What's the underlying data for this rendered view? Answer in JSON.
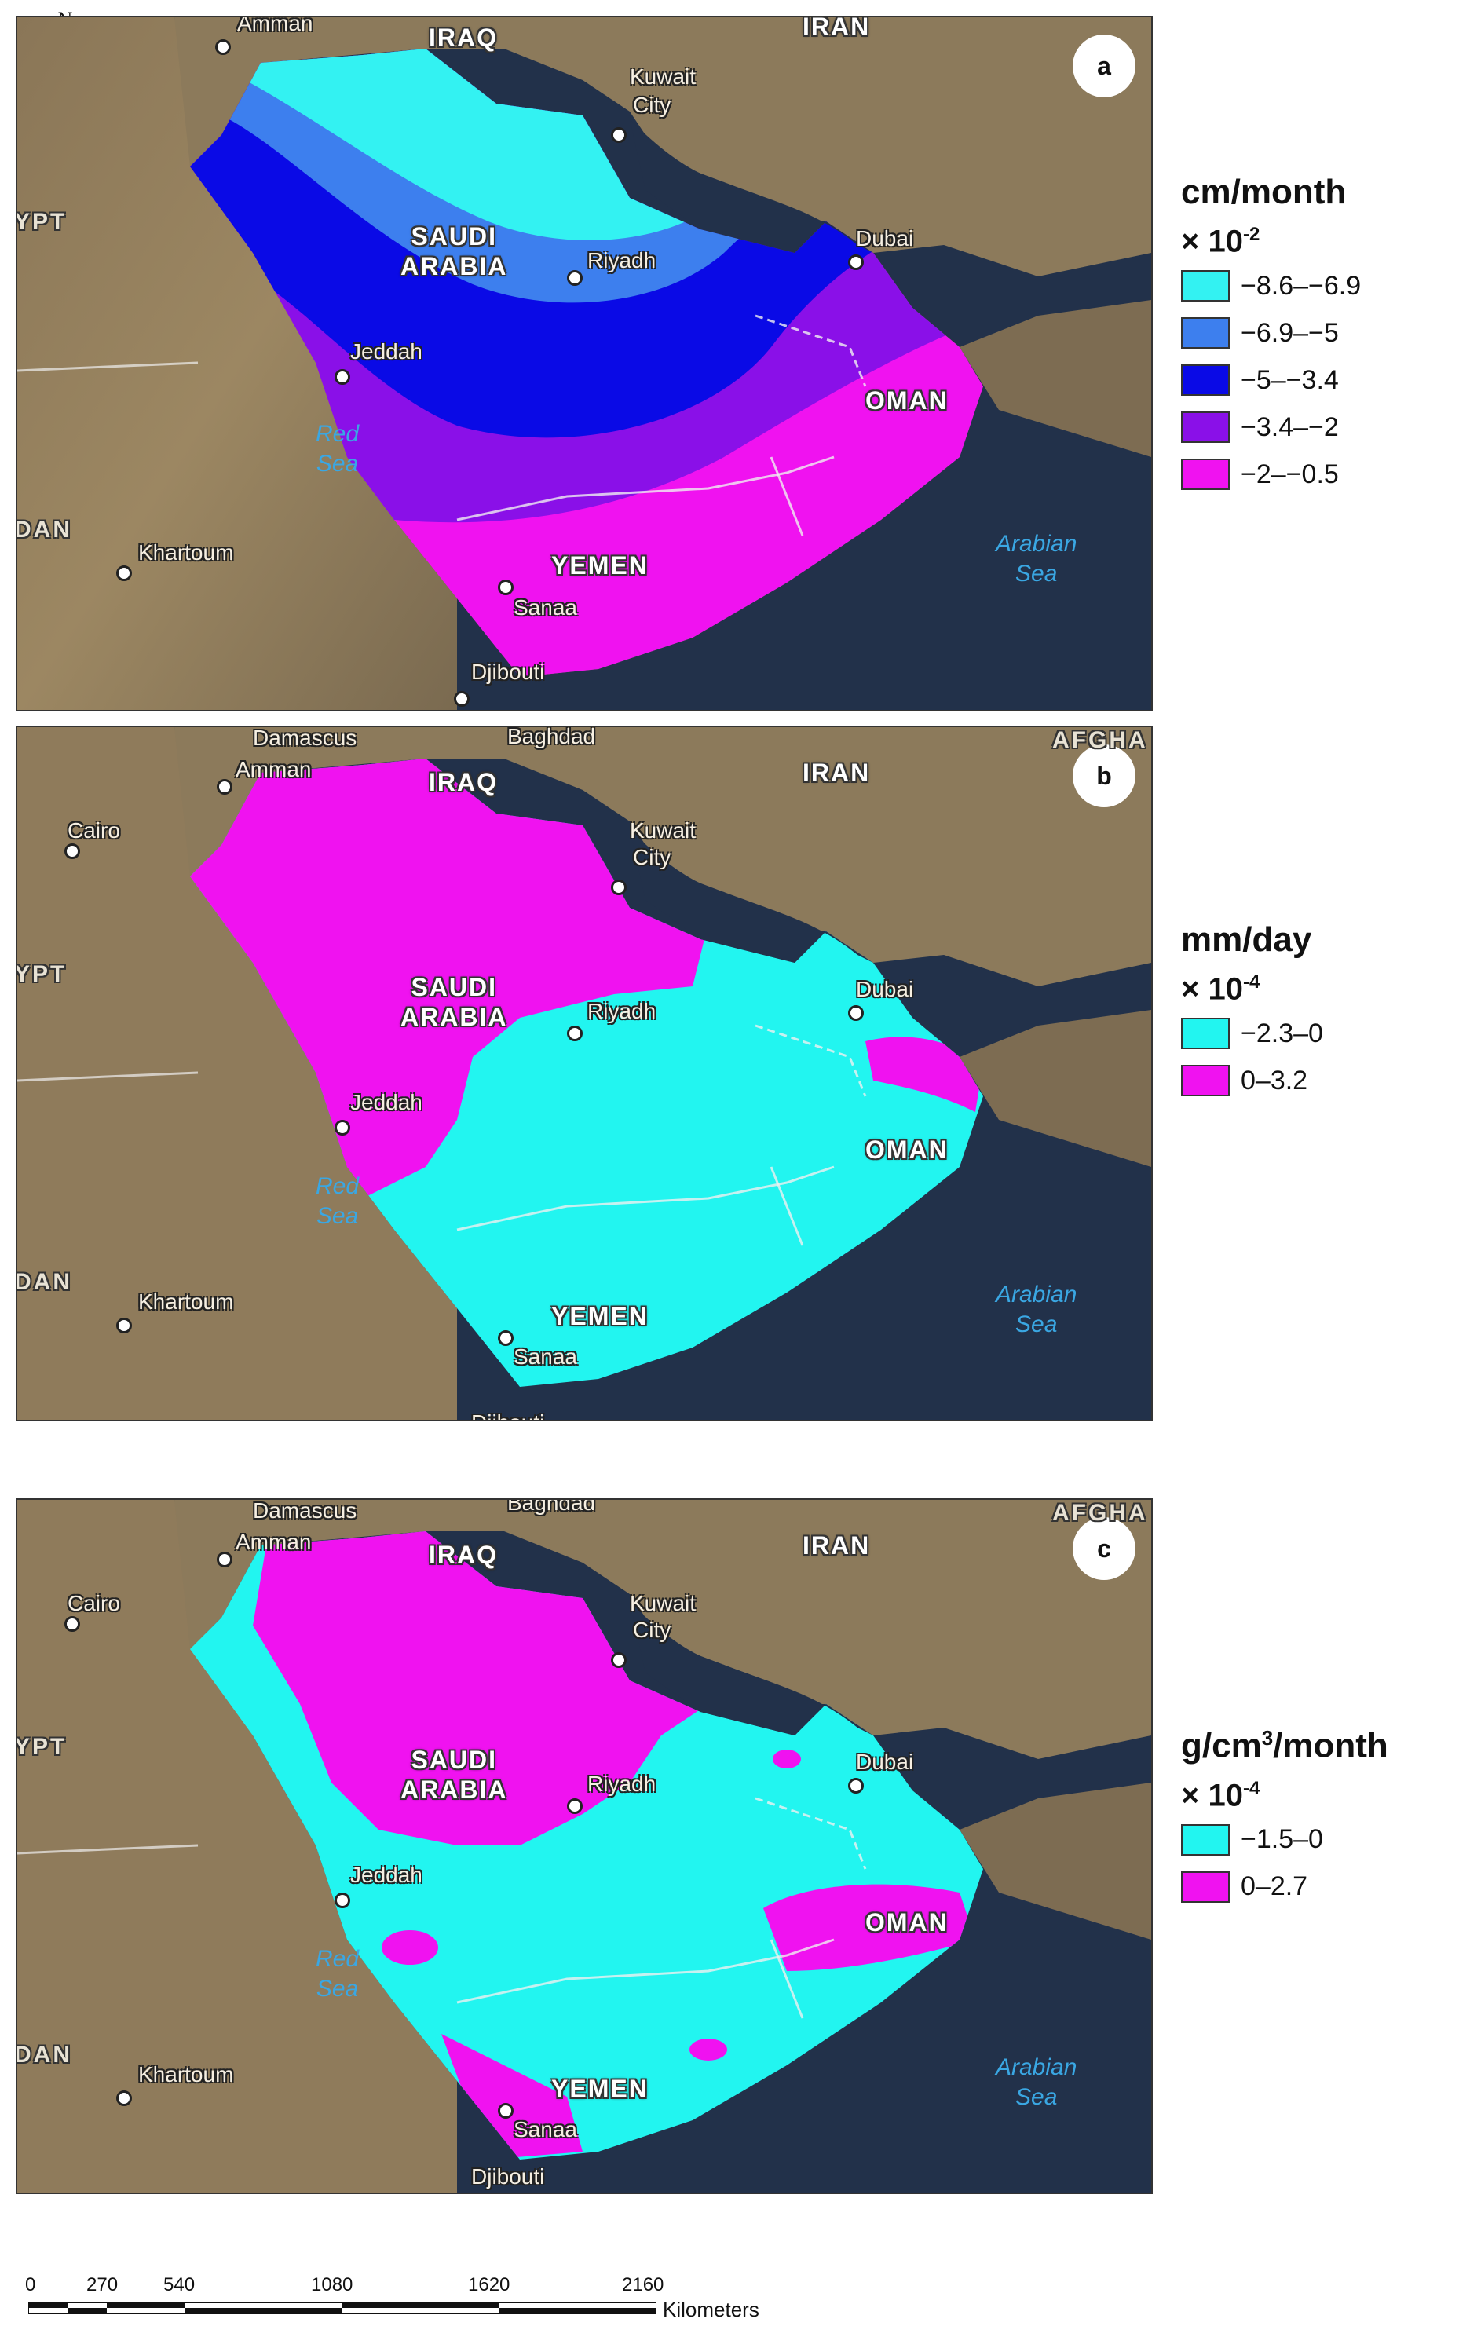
{
  "north_arrow": {
    "label": "N"
  },
  "panels": [
    {
      "letter": "a",
      "unit": "cm/month",
      "scale_base": "× 10",
      "scale_exp": "-2",
      "legend": [
        {
          "label": "−8.6–−6.9",
          "color": "#33f2f2"
        },
        {
          "label": "−6.9–−5",
          "color": "#3d7fee"
        },
        {
          "label": "−5–−3.4",
          "color": "#0a0ae6"
        },
        {
          "label": "−3.4–−2",
          "color": "#8a10e8"
        },
        {
          "label": "−2–−0.5",
          "color": "#f012f0"
        }
      ]
    },
    {
      "letter": "b",
      "unit": "mm/day",
      "scale_base": "× 10",
      "scale_exp": "-4",
      "legend": [
        {
          "label": "−2.3–0",
          "color": "#22f5f0"
        },
        {
          "label": "0–3.2",
          "color": "#f012f0"
        }
      ]
    },
    {
      "letter": "c",
      "unit_pre": "g/cm",
      "unit_sup": "3",
      "unit_post": "/month",
      "scale_base": "× 10",
      "scale_exp": "-4",
      "legend": [
        {
          "label": "−1.5–0",
          "color": "#22f5f0"
        },
        {
          "label": "0–2.7",
          "color": "#f012f0"
        }
      ]
    }
  ],
  "map_labels": {
    "iraq": "IRAQ",
    "iran": "IRAN",
    "saudi1": "SAUDI",
    "saudi2": "ARABIA",
    "oman": "OMAN",
    "yemen": "YEMEN",
    "egypt": "YPT",
    "sudan": "DAN",
    "afghan": "AFGHA",
    "amman": "Amman",
    "damascus": "Damascus",
    "baghdad": "Baghdad",
    "cairo": "Cairo",
    "kuwait1": "Kuwait",
    "kuwait2": "City",
    "riyadh": "Riyadh",
    "dubai": "Dubai",
    "jeddah": "Jeddah",
    "redsea1": "Red",
    "redsea2": "Sea",
    "khartoum": "Khartoum",
    "sanaa": "Sanaa",
    "djibouti": "Djibouti",
    "arabian1": "Arabian",
    "arabian2": "Sea"
  },
  "scale_bar": {
    "ticks": [
      "0",
      "270",
      "540",
      "1080",
      "1620",
      "2160"
    ],
    "unit": "Kilometers"
  }
}
